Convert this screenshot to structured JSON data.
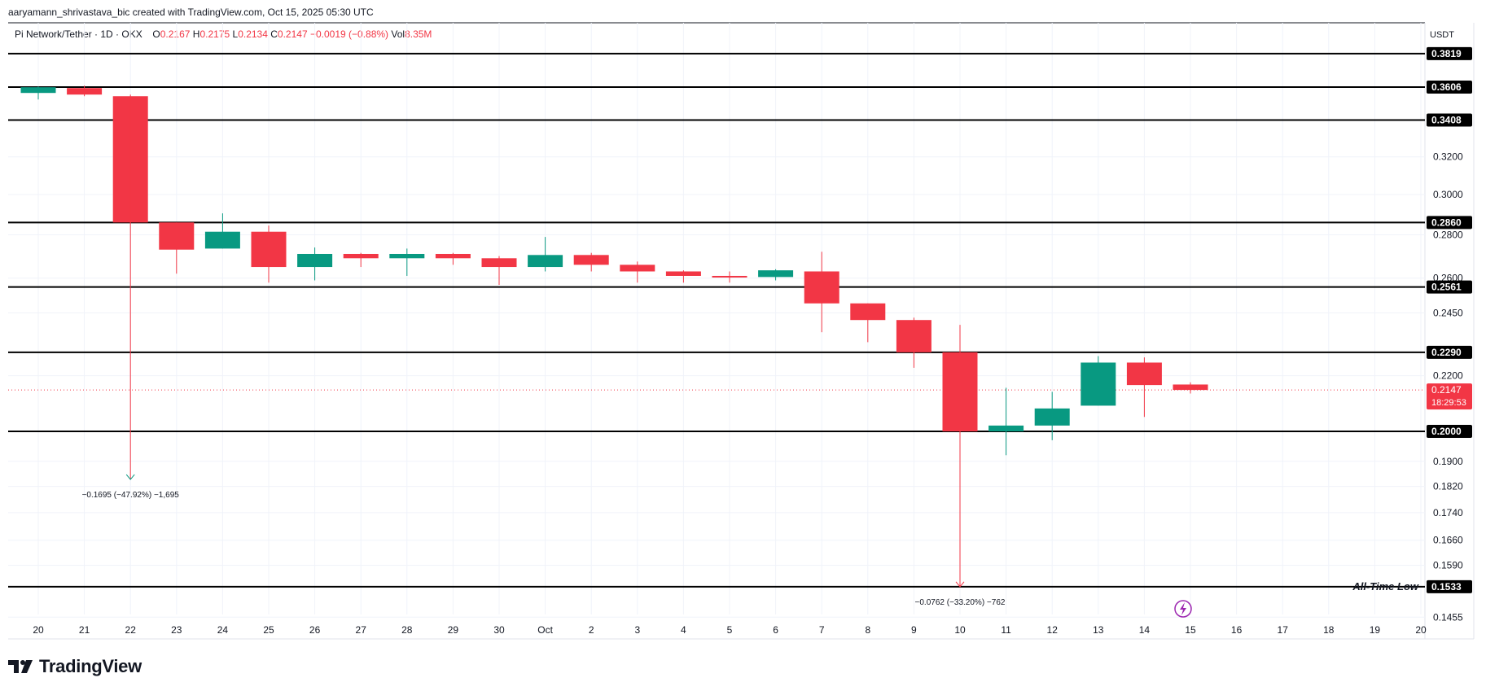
{
  "header": {
    "attribution": "aaryamann_shrivastava_bic created with TradingView.com, Oct 15, 2025 05:30 UTC",
    "symbol": "Pi Network/Tether · 1D · OKX",
    "o_label": "O",
    "o_value": "0.2167",
    "h_label": "H",
    "h_value": "0.2175",
    "l_label": "L",
    "l_value": "0.2134",
    "c_label": "C",
    "c_value": "0.2147",
    "change": "−0.0019 (−0.88%)",
    "vol_label": "Vol",
    "vol_value": "8.35M"
  },
  "currency": "USDT",
  "brand": {
    "name": "TradingView"
  },
  "colors": {
    "up": "#089981",
    "down": "#f23645",
    "grid": "#f0f3fa",
    "level": "#000000"
  },
  "chart_data": {
    "type": "candlestick",
    "scale": "log",
    "ylim": [
      0.145,
      0.39
    ],
    "x_tick_labels": [
      "20",
      "21",
      "22",
      "23",
      "24",
      "25",
      "26",
      "27",
      "28",
      "29",
      "30",
      "Oct",
      "2",
      "3",
      "4",
      "5",
      "6",
      "7",
      "8",
      "9",
      "10",
      "11",
      "12",
      "13",
      "14",
      "15",
      "16",
      "17",
      "18",
      "19",
      "20"
    ],
    "price_ticks": [
      "0.3200",
      "0.3000",
      "0.2800",
      "0.2600",
      "0.2450",
      "0.2200",
      "0.1900",
      "0.1820",
      "0.1740",
      "0.1660",
      "0.1590",
      "0.1455"
    ],
    "candles": [
      {
        "date": "Sep 20",
        "o": 0.357,
        "h": 0.361,
        "l": 0.353,
        "c": 0.3605
      },
      {
        "date": "Sep 21",
        "o": 0.36,
        "h": 0.3615,
        "l": 0.355,
        "c": 0.356
      },
      {
        "date": "Sep 22",
        "o": 0.355,
        "h": 0.356,
        "l": 0.286,
        "c": 0.286
      },
      {
        "date": "Sep 23",
        "o": 0.286,
        "h": 0.286,
        "l": 0.262,
        "c": 0.273
      },
      {
        "date": "Sep 24",
        "o": 0.2735,
        "h": 0.2905,
        "l": 0.2735,
        "c": 0.2815
      },
      {
        "date": "Sep 25",
        "o": 0.2815,
        "h": 0.2845,
        "l": 0.258,
        "c": 0.265
      },
      {
        "date": "Sep 26",
        "o": 0.265,
        "h": 0.274,
        "l": 0.259,
        "c": 0.271
      },
      {
        "date": "Sep 27",
        "o": 0.271,
        "h": 0.2715,
        "l": 0.265,
        "c": 0.269
      },
      {
        "date": "Sep 28",
        "o": 0.269,
        "h": 0.2735,
        "l": 0.261,
        "c": 0.271
      },
      {
        "date": "Sep 29",
        "o": 0.271,
        "h": 0.2715,
        "l": 0.266,
        "c": 0.269
      },
      {
        "date": "Sep 30",
        "o": 0.269,
        "h": 0.27,
        "l": 0.257,
        "c": 0.265
      },
      {
        "date": "Oct 1",
        "o": 0.265,
        "h": 0.279,
        "l": 0.263,
        "c": 0.2705
      },
      {
        "date": "Oct 2",
        "o": 0.2705,
        "h": 0.2715,
        "l": 0.263,
        "c": 0.266
      },
      {
        "date": "Oct 3",
        "o": 0.266,
        "h": 0.2675,
        "l": 0.258,
        "c": 0.263
      },
      {
        "date": "Oct 4",
        "o": 0.263,
        "h": 0.2635,
        "l": 0.258,
        "c": 0.261
      },
      {
        "date": "Oct 5",
        "o": 0.261,
        "h": 0.263,
        "l": 0.258,
        "c": 0.2605
      },
      {
        "date": "Oct 6",
        "o": 0.2605,
        "h": 0.264,
        "l": 0.259,
        "c": 0.2635
      },
      {
        "date": "Oct 7",
        "o": 0.263,
        "h": 0.272,
        "l": 0.237,
        "c": 0.249
      },
      {
        "date": "Oct 8",
        "o": 0.249,
        "h": 0.249,
        "l": 0.233,
        "c": 0.242
      },
      {
        "date": "Oct 9",
        "o": 0.242,
        "h": 0.243,
        "l": 0.223,
        "c": 0.229
      },
      {
        "date": "Oct 10",
        "o": 0.229,
        "h": 0.24,
        "l": 0.1533,
        "c": 0.2
      },
      {
        "date": "Oct 11",
        "o": 0.2,
        "h": 0.2155,
        "l": 0.192,
        "c": 0.202
      },
      {
        "date": "Oct 12",
        "o": 0.202,
        "h": 0.214,
        "l": 0.197,
        "c": 0.208
      },
      {
        "date": "Oct 13",
        "o": 0.209,
        "h": 0.2275,
        "l": 0.209,
        "c": 0.225
      },
      {
        "date": "Oct 14",
        "o": 0.225,
        "h": 0.227,
        "l": 0.205,
        "c": 0.2165
      },
      {
        "date": "Oct 15",
        "o": 0.2167,
        "h": 0.2175,
        "l": 0.2134,
        "c": 0.2147
      }
    ],
    "levels": [
      {
        "value": 0.3819,
        "label": "0.3819"
      },
      {
        "value": 0.3606,
        "label": "0.3606"
      },
      {
        "value": 0.3408,
        "label": "0.3408"
      },
      {
        "value": 0.286,
        "label": "0.2860"
      },
      {
        "value": 0.2561,
        "label": "0.2561"
      },
      {
        "value": 0.229,
        "label": "0.2290"
      },
      {
        "value": 0.2,
        "label": "0.2000"
      },
      {
        "value": 0.1533,
        "label": "0.1533"
      }
    ],
    "level_annotation": {
      "value": 0.1533,
      "text": "All-Time Low"
    },
    "current_price": {
      "value": 0.2147,
      "label": "0.2147",
      "countdown": "18:29:53"
    },
    "measurements": [
      {
        "candle": 2,
        "from": 0.3537,
        "to": 0.1842,
        "text": "−0.1695 (−47.92%) −1,695"
      },
      {
        "candle": 20,
        "from": 0.2295,
        "to": 0.1533,
        "text": "−0.0762 (−33.20%) −762"
      }
    ]
  }
}
